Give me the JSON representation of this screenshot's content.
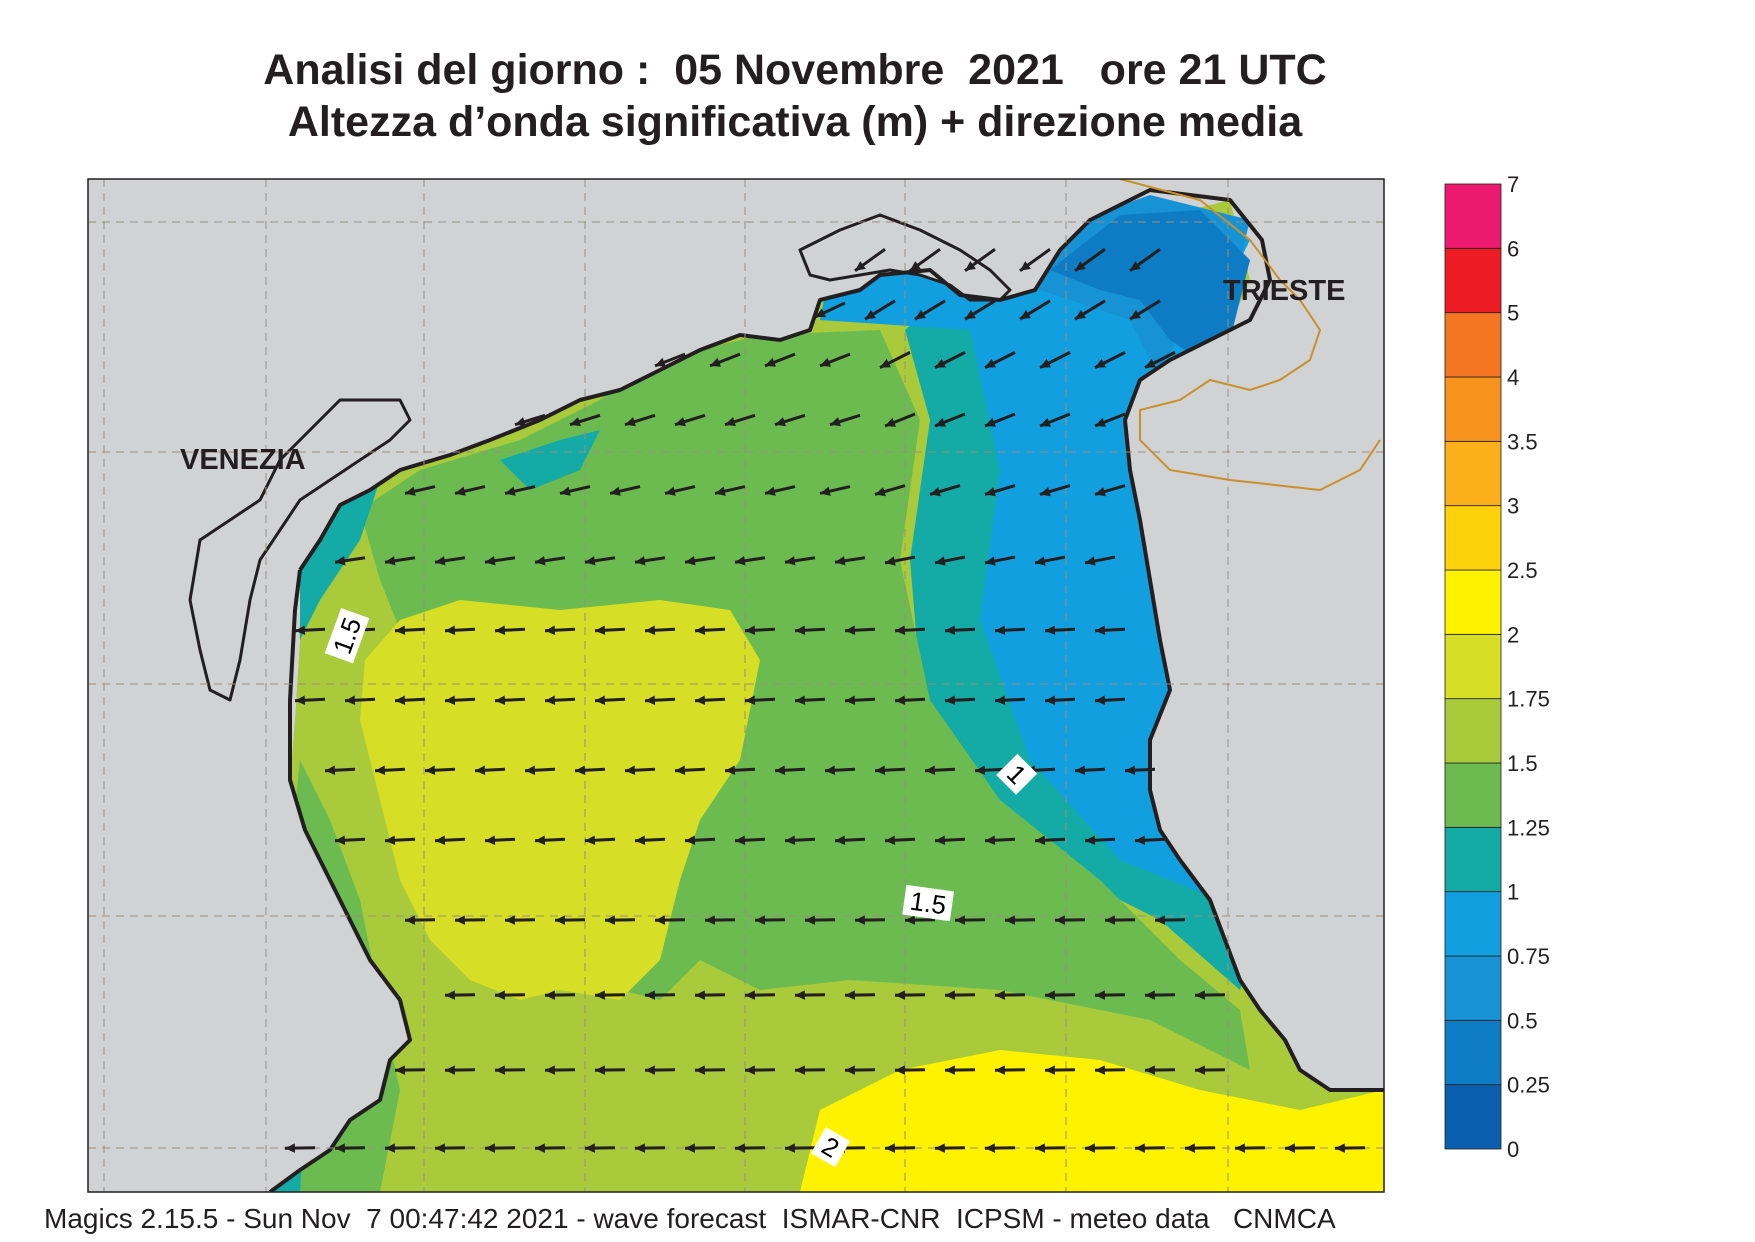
{
  "title": {
    "line1": "Analisi del giorno :  05 Novembre  2021   ore 21 UTC",
    "line2": "Altezza d’onda significativa (m) + direzione media"
  },
  "map": {
    "cities": [
      {
        "name": "VENEZIA"
      },
      {
        "name": "TRIESTE"
      }
    ],
    "contour_labels": [
      "1.5",
      "1",
      "1.5",
      "2"
    ],
    "colors": {
      "land": "#d1d2d4",
      "coast": "#231f20",
      "border": "#c8902c",
      "arrow": "#231f20"
    }
  },
  "colorbar": {
    "levels": [
      "0",
      "0.25",
      "0.5",
      "0.75",
      "1",
      "1.25",
      "1.5",
      "1.75",
      "2",
      "2.5",
      "3",
      "3.5",
      "4",
      "5",
      "6",
      "7"
    ],
    "colors": [
      "#0a5fae",
      "#0e7cc4",
      "#1792d4",
      "#129fdf",
      "#14aba6",
      "#6cbb50",
      "#a9cb3b",
      "#d6de26",
      "#fff200",
      "#fdd20a",
      "#fbaf1b",
      "#f8941d",
      "#f47622",
      "#ed1c24",
      "#ec1a6e"
    ]
  },
  "footer": "Magics 2.15.5 - Sun Nov  7 00:47:42 2021 - wave forecast  ISMAR-CNR  ICPSM - meteo data   CNMCA"
}
